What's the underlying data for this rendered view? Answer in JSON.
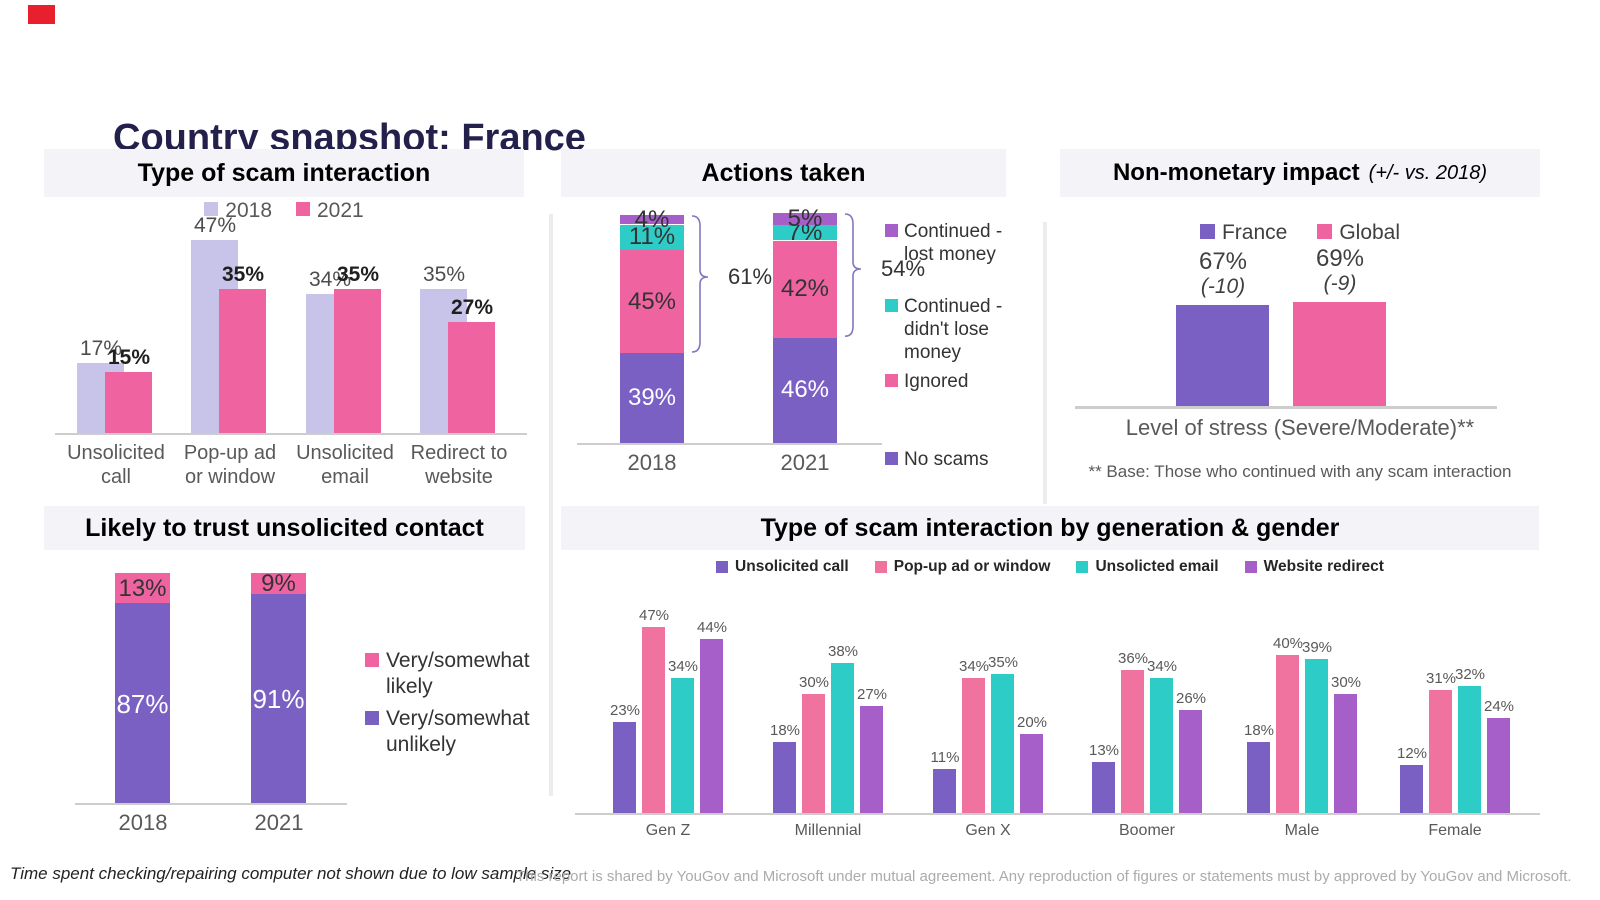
{
  "page": {
    "title": "Country snapshot: France",
    "footnote_left": "Time spent checking/repairing computer not shown due to low sample size",
    "footnote_right": "This report is shared by YouGov and Microsoft under mutual agreement. Any reproduction of figures or statements must by approved by YouGov and Microsoft."
  },
  "colors": {
    "purple": "#7B60C4",
    "lavender": "#C8C3E8",
    "pink": "#EF64A0",
    "pink_light": "#F0739F",
    "teal": "#2ECCC6",
    "violet": "#A65FC9",
    "header_bg": "#F4F4F8",
    "divider": "#ECECEC",
    "axis": "#CDCDCD",
    "bracket": "#8476BE",
    "title_navy": "#23214B",
    "label_gray": "#595959",
    "label_dark": "#1F1F1F",
    "footnote_gray": "#ABABAB",
    "red": "#E8202E"
  },
  "chart_data": [
    {
      "type": "bar",
      "title": "Type of scam interaction",
      "legend": [
        {
          "label": "2018",
          "color": "lavender"
        },
        {
          "label": "2021",
          "color": "pink"
        }
      ],
      "categories": [
        "Unsolicited\ncall",
        "Pop-up ad\nor window",
        "Unsolicited\nemail",
        "Redirect to\nwebsite"
      ],
      "series": [
        {
          "name": "2018",
          "color": "lavender",
          "values": [
            17,
            47,
            34,
            35
          ]
        },
        {
          "name": "2021",
          "color": "pink",
          "values": [
            15,
            35,
            35,
            27
          ]
        }
      ],
      "value_suffix": "%"
    },
    {
      "type": "stacked-bar",
      "title": "Actions taken",
      "categories": [
        "2018",
        "2021"
      ],
      "series": [
        {
          "name": "No scams",
          "color": "purple",
          "values": [
            39,
            46
          ],
          "label_color": "#FFFFFF"
        },
        {
          "name": "Ignored",
          "color": "pink",
          "values": [
            45,
            42
          ],
          "label_color": "#333333"
        },
        {
          "name": "Continued - didn't lose money",
          "color": "teal",
          "values": [
            11,
            7
          ],
          "label_color": "#333333"
        },
        {
          "name": "Continued - lost money",
          "color": "violet",
          "values": [
            4,
            5
          ],
          "label_color": "#333333"
        }
      ],
      "brackets": [
        {
          "label": "61%"
        },
        {
          "label": "54%"
        }
      ],
      "legend": [
        {
          "label": "Continued -\nlost money",
          "color": "violet"
        },
        {
          "label": "Continued -\ndidn't lose\nmoney",
          "color": "teal"
        },
        {
          "label": "Ignored",
          "color": "pink"
        },
        {
          "label": "No scams",
          "color": "purple"
        }
      ],
      "value_suffix": "%"
    },
    {
      "type": "bar",
      "title": "Non-monetary impact",
      "title_suffix": "(+/- vs. 2018)",
      "legend": [
        {
          "label": "France",
          "color": "purple"
        },
        {
          "label": "Global",
          "color": "pink"
        }
      ],
      "categories": [
        "Level of stress (Severe/Moderate)**"
      ],
      "series": [
        {
          "name": "France",
          "color": "purple",
          "values": [
            67
          ],
          "delta": "(-10)"
        },
        {
          "name": "Global",
          "color": "pink",
          "values": [
            69
          ],
          "delta": "(-9)"
        }
      ],
      "footnote": "** Base: Those who continued with any scam interaction",
      "value_suffix": "%"
    },
    {
      "type": "stacked-bar",
      "title": "Likely to trust unsolicited contact",
      "categories": [
        "2018",
        "2021"
      ],
      "series": [
        {
          "name": "Very/somewhat unlikely",
          "color": "purple",
          "values": [
            87,
            91
          ],
          "label_color": "#FFFFFF"
        },
        {
          "name": "Very/somewhat likely",
          "color": "pink",
          "values": [
            13,
            9
          ],
          "label_color": "#333333"
        }
      ],
      "legend": [
        {
          "label": "Very/somewhat\nlikely",
          "color": "pink"
        },
        {
          "label": "Very/somewhat\nunlikely",
          "color": "purple"
        }
      ],
      "value_suffix": "%"
    },
    {
      "type": "bar",
      "title": "Type of scam interaction by generation & gender",
      "categories": [
        "Gen Z",
        "Millennial",
        "Gen X",
        "Boomer",
        "Male",
        "Female"
      ],
      "series": [
        {
          "name": "Unsolicited call",
          "color": "purple",
          "values": [
            23,
            18,
            11,
            13,
            18,
            12
          ]
        },
        {
          "name": "Pop-up ad or window",
          "color": "pink_light",
          "values": [
            47,
            30,
            34,
            36,
            40,
            31
          ]
        },
        {
          "name": "Unsolicted email",
          "color": "teal",
          "values": [
            34,
            38,
            35,
            34,
            39,
            32
          ]
        },
        {
          "name": "Website redirect",
          "color": "violet",
          "values": [
            44,
            27,
            20,
            26,
            30,
            24
          ]
        }
      ],
      "legend": [
        {
          "label": "Unsolicited call",
          "color": "purple"
        },
        {
          "label": "Pop-up ad or window",
          "color": "pink_light"
        },
        {
          "label": "Unsolicted email",
          "color": "teal"
        },
        {
          "label": "Website redirect",
          "color": "violet"
        }
      ],
      "value_suffix": "%"
    }
  ]
}
